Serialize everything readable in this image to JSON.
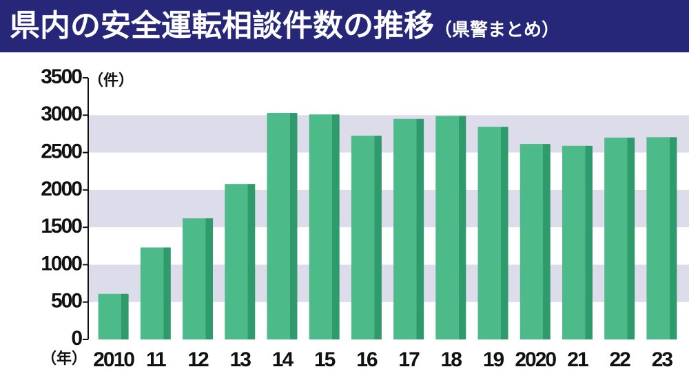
{
  "chart_data": {
    "type": "bar",
    "title": "県内の安全運転相談件数の推移",
    "subtitle": "（県警まとめ）",
    "y_label": "（件）",
    "x_label": "（年）",
    "categories": [
      "2010",
      "11",
      "12",
      "13",
      "14",
      "15",
      "16",
      "17",
      "18",
      "19",
      "2020",
      "21",
      "22",
      "23"
    ],
    "values": [
      610,
      1230,
      1620,
      2080,
      3030,
      3010,
      2725,
      2950,
      2990,
      2845,
      2615,
      2590,
      2700,
      2705
    ],
    "color": "#4dba8a",
    "ylim": [
      0,
      3500
    ],
    "yticks": [
      0,
      500,
      1000,
      1500,
      2000,
      2500,
      3000,
      3500
    ],
    "grid": "bands"
  }
}
